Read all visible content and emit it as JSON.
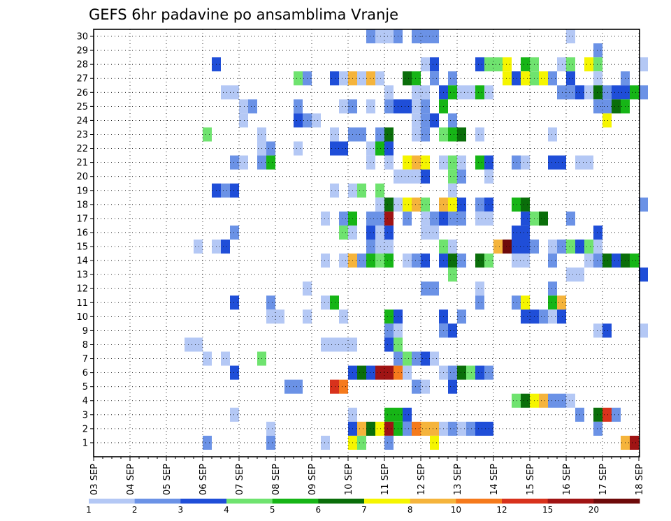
{
  "chart_data": {
    "type": "heatmap",
    "title": "GEFS 6hr padavine po ansamblima Vranje",
    "x_tick_labels": [
      "03 SEP",
      "04 SEP",
      "05 SEP",
      "06 SEP",
      "07 SEP",
      "08 SEP",
      "09 SEP",
      "10 SEP",
      "11 SEP",
      "12 SEP",
      "13 SEP",
      "14 SEP",
      "15 SEP",
      "16 SEP",
      "17 SEP",
      "18 SEP"
    ],
    "x_days_start": 3,
    "x_steps_per_day": 4,
    "y_members": [
      1,
      30
    ],
    "y_tick_labels": [
      "1",
      "2",
      "3",
      "4",
      "5",
      "6",
      "7",
      "8",
      "9",
      "10",
      "11",
      "12",
      "13",
      "14",
      "15",
      "16",
      "17",
      "18",
      "19",
      "20",
      "21",
      "22",
      "23",
      "24",
      "25",
      "26",
      "27",
      "28",
      "29",
      "30"
    ],
    "colorbar": {
      "tick_labels": [
        "1",
        "2",
        "3",
        "4",
        "5",
        "6",
        "7",
        "8",
        "10",
        "12",
        "15",
        "20"
      ],
      "colors": [
        "#b4c8f5",
        "#6b92e6",
        "#1f4ed8",
        "#6fe36f",
        "#16b516",
        "#0a6e0a",
        "#f5f500",
        "#f5b43c",
        "#f57a1c",
        "#d8321c",
        "#a01414",
        "#6e0a0a"
      ]
    },
    "grid": true,
    "cells": [
      [
        30,
        30,
        2
      ],
      [
        30,
        31,
        1
      ],
      [
        30,
        32,
        1
      ],
      [
        30,
        33,
        2
      ],
      [
        30,
        35,
        2
      ],
      [
        30,
        36,
        2
      ],
      [
        30,
        37,
        2
      ],
      [
        30,
        52,
        1
      ],
      [
        29,
        55,
        2
      ],
      [
        28,
        13,
        3
      ],
      [
        28,
        36,
        1
      ],
      [
        28,
        37,
        3
      ],
      [
        28,
        42,
        3
      ],
      [
        28,
        43,
        4
      ],
      [
        28,
        44,
        4
      ],
      [
        28,
        45,
        7
      ],
      [
        28,
        47,
        5
      ],
      [
        28,
        48,
        4
      ],
      [
        28,
        51,
        1
      ],
      [
        28,
        52,
        4
      ],
      [
        28,
        54,
        7
      ],
      [
        28,
        55,
        4
      ],
      [
        28,
        60,
        1
      ],
      [
        27,
        22,
        4
      ],
      [
        27,
        23,
        2
      ],
      [
        27,
        26,
        3
      ],
      [
        27,
        27,
        1
      ],
      [
        27,
        28,
        8
      ],
      [
        27,
        29,
        1
      ],
      [
        27,
        30,
        8
      ],
      [
        27,
        31,
        1
      ],
      [
        27,
        34,
        6
      ],
      [
        27,
        35,
        5
      ],
      [
        27,
        37,
        2
      ],
      [
        27,
        39,
        2
      ],
      [
        27,
        45,
        7
      ],
      [
        27,
        46,
        3
      ],
      [
        27,
        47,
        7
      ],
      [
        27,
        48,
        4
      ],
      [
        27,
        49,
        7
      ],
      [
        27,
        50,
        2
      ],
      [
        27,
        52,
        3
      ],
      [
        27,
        55,
        1
      ],
      [
        27,
        58,
        2
      ],
      [
        26,
        14,
        1
      ],
      [
        26,
        15,
        1
      ],
      [
        26,
        32,
        1
      ],
      [
        26,
        35,
        1
      ],
      [
        26,
        36,
        1
      ],
      [
        26,
        38,
        3
      ],
      [
        26,
        39,
        5
      ],
      [
        26,
        40,
        1
      ],
      [
        26,
        41,
        1
      ],
      [
        26,
        42,
        5
      ],
      [
        26,
        43,
        1
      ],
      [
        26,
        51,
        2
      ],
      [
        26,
        52,
        2
      ],
      [
        26,
        53,
        3
      ],
      [
        26,
        54,
        1
      ],
      [
        26,
        55,
        6
      ],
      [
        26,
        56,
        2
      ],
      [
        26,
        57,
        3
      ],
      [
        26,
        58,
        3
      ],
      [
        26,
        59,
        5
      ],
      [
        26,
        60,
        2
      ],
      [
        25,
        16,
        1
      ],
      [
        25,
        17,
        2
      ],
      [
        25,
        22,
        2
      ],
      [
        25,
        27,
        1
      ],
      [
        25,
        28,
        2
      ],
      [
        25,
        30,
        1
      ],
      [
        25,
        32,
        2
      ],
      [
        25,
        33,
        3
      ],
      [
        25,
        34,
        3
      ],
      [
        25,
        35,
        1
      ],
      [
        25,
        36,
        2
      ],
      [
        25,
        38,
        5
      ],
      [
        25,
        55,
        2
      ],
      [
        25,
        56,
        2
      ],
      [
        25,
        57,
        6
      ],
      [
        25,
        58,
        5
      ],
      [
        24,
        16,
        1
      ],
      [
        24,
        22,
        3
      ],
      [
        24,
        23,
        2
      ],
      [
        24,
        24,
        1
      ],
      [
        24,
        35,
        1
      ],
      [
        24,
        36,
        2
      ],
      [
        24,
        37,
        3
      ],
      [
        24,
        39,
        2
      ],
      [
        24,
        56,
        7
      ],
      [
        23,
        12,
        4
      ],
      [
        23,
        18,
        1
      ],
      [
        23,
        26,
        1
      ],
      [
        23,
        28,
        2
      ],
      [
        23,
        29,
        2
      ],
      [
        23,
        31,
        2
      ],
      [
        23,
        32,
        6
      ],
      [
        23,
        35,
        1
      ],
      [
        23,
        36,
        2
      ],
      [
        23,
        38,
        4
      ],
      [
        23,
        39,
        5
      ],
      [
        23,
        40,
        6
      ],
      [
        23,
        42,
        1
      ],
      [
        23,
        50,
        1
      ],
      [
        22,
        18,
        1
      ],
      [
        22,
        19,
        2
      ],
      [
        22,
        22,
        1
      ],
      [
        22,
        26,
        3
      ],
      [
        22,
        27,
        3
      ],
      [
        22,
        30,
        1
      ],
      [
        22,
        31,
        5
      ],
      [
        22,
        32,
        3
      ],
      [
        21,
        15,
        2
      ],
      [
        21,
        16,
        1
      ],
      [
        21,
        18,
        2
      ],
      [
        21,
        19,
        5
      ],
      [
        21,
        30,
        1
      ],
      [
        21,
        32,
        1
      ],
      [
        21,
        34,
        7
      ],
      [
        21,
        35,
        8
      ],
      [
        21,
        36,
        7
      ],
      [
        21,
        38,
        1
      ],
      [
        21,
        39,
        4
      ],
      [
        21,
        40,
        1
      ],
      [
        21,
        42,
        5
      ],
      [
        21,
        43,
        3
      ],
      [
        21,
        46,
        2
      ],
      [
        21,
        47,
        1
      ],
      [
        21,
        50,
        3
      ],
      [
        21,
        51,
        3
      ],
      [
        21,
        53,
        1
      ],
      [
        21,
        54,
        1
      ],
      [
        20,
        33,
        1
      ],
      [
        20,
        34,
        1
      ],
      [
        20,
        35,
        1
      ],
      [
        20,
        36,
        3
      ],
      [
        20,
        39,
        4
      ],
      [
        20,
        40,
        2
      ],
      [
        20,
        43,
        1
      ],
      [
        19,
        13,
        3
      ],
      [
        19,
        14,
        2
      ],
      [
        19,
        15,
        3
      ],
      [
        19,
        26,
        1
      ],
      [
        19,
        28,
        1
      ],
      [
        19,
        29,
        4
      ],
      [
        19,
        31,
        4
      ],
      [
        19,
        39,
        1
      ],
      [
        18,
        31,
        1
      ],
      [
        18,
        32,
        6
      ],
      [
        18,
        33,
        1
      ],
      [
        18,
        34,
        7
      ],
      [
        18,
        35,
        8
      ],
      [
        18,
        36,
        4
      ],
      [
        18,
        38,
        8
      ],
      [
        18,
        39,
        7
      ],
      [
        18,
        40,
        3
      ],
      [
        18,
        42,
        2
      ],
      [
        18,
        43,
        3
      ],
      [
        18,
        46,
        5
      ],
      [
        18,
        47,
        6
      ],
      [
        18,
        60,
        2
      ],
      [
        17,
        25,
        1
      ],
      [
        17,
        27,
        2
      ],
      [
        17,
        28,
        5
      ],
      [
        17,
        30,
        2
      ],
      [
        17,
        31,
        2
      ],
      [
        17,
        32,
        11
      ],
      [
        17,
        34,
        2
      ],
      [
        17,
        36,
        1
      ],
      [
        17,
        37,
        2
      ],
      [
        17,
        38,
        3
      ],
      [
        17,
        39,
        2
      ],
      [
        17,
        40,
        2
      ],
      [
        17,
        42,
        1
      ],
      [
        17,
        43,
        1
      ],
      [
        17,
        47,
        3
      ],
      [
        17,
        48,
        4
      ],
      [
        17,
        49,
        6
      ],
      [
        17,
        52,
        2
      ],
      [
        16,
        15,
        2
      ],
      [
        16,
        27,
        4
      ],
      [
        16,
        28,
        1
      ],
      [
        16,
        30,
        3
      ],
      [
        16,
        31,
        1
      ],
      [
        16,
        32,
        3
      ],
      [
        16,
        36,
        1
      ],
      [
        16,
        37,
        1
      ],
      [
        16,
        46,
        3
      ],
      [
        16,
        47,
        3
      ],
      [
        16,
        55,
        3
      ],
      [
        15,
        11,
        1
      ],
      [
        15,
        13,
        1
      ],
      [
        15,
        14,
        3
      ],
      [
        15,
        30,
        2
      ],
      [
        15,
        31,
        1
      ],
      [
        15,
        32,
        1
      ],
      [
        15,
        38,
        4
      ],
      [
        15,
        39,
        1
      ],
      [
        15,
        44,
        8
      ],
      [
        15,
        45,
        12
      ],
      [
        15,
        46,
        3
      ],
      [
        15,
        47,
        3
      ],
      [
        15,
        48,
        2
      ],
      [
        15,
        50,
        1
      ],
      [
        15,
        51,
        2
      ],
      [
        15,
        52,
        4
      ],
      [
        15,
        53,
        3
      ],
      [
        15,
        54,
        4
      ],
      [
        15,
        55,
        1
      ],
      [
        14,
        25,
        1
      ],
      [
        14,
        27,
        1
      ],
      [
        14,
        28,
        8
      ],
      [
        14,
        29,
        2
      ],
      [
        14,
        30,
        5
      ],
      [
        14,
        31,
        4
      ],
      [
        14,
        32,
        5
      ],
      [
        14,
        34,
        1
      ],
      [
        14,
        35,
        2
      ],
      [
        14,
        36,
        3
      ],
      [
        14,
        38,
        3
      ],
      [
        14,
        39,
        6
      ],
      [
        14,
        40,
        2
      ],
      [
        14,
        42,
        6
      ],
      [
        14,
        43,
        4
      ],
      [
        14,
        46,
        1
      ],
      [
        14,
        47,
        1
      ],
      [
        14,
        50,
        2
      ],
      [
        14,
        54,
        1
      ],
      [
        14,
        55,
        2
      ],
      [
        14,
        56,
        6
      ],
      [
        14,
        57,
        3
      ],
      [
        14,
        58,
        6
      ],
      [
        14,
        59,
        5
      ],
      [
        13,
        39,
        4
      ],
      [
        13,
        52,
        1
      ],
      [
        13,
        53,
        1
      ],
      [
        13,
        60,
        3
      ],
      [
        12,
        23,
        1
      ],
      [
        12,
        36,
        2
      ],
      [
        12,
        37,
        2
      ],
      [
        12,
        42,
        1
      ],
      [
        12,
        50,
        2
      ],
      [
        11,
        15,
        3
      ],
      [
        11,
        19,
        2
      ],
      [
        11,
        25,
        1
      ],
      [
        11,
        26,
        5
      ],
      [
        11,
        42,
        2
      ],
      [
        11,
        46,
        2
      ],
      [
        11,
        47,
        7
      ],
      [
        11,
        50,
        5
      ],
      [
        11,
        51,
        8
      ],
      [
        10,
        19,
        1
      ],
      [
        10,
        20,
        1
      ],
      [
        10,
        23,
        1
      ],
      [
        10,
        27,
        1
      ],
      [
        10,
        32,
        5
      ],
      [
        10,
        33,
        3
      ],
      [
        10,
        38,
        3
      ],
      [
        10,
        40,
        2
      ],
      [
        10,
        47,
        3
      ],
      [
        10,
        48,
        3
      ],
      [
        10,
        49,
        2
      ],
      [
        10,
        50,
        1
      ],
      [
        10,
        51,
        3
      ],
      [
        9,
        32,
        2
      ],
      [
        9,
        33,
        1
      ],
      [
        9,
        38,
        2
      ],
      [
        9,
        39,
        3
      ],
      [
        9,
        55,
        1
      ],
      [
        9,
        56,
        3
      ],
      [
        9,
        60,
        1
      ],
      [
        8,
        10,
        1
      ],
      [
        8,
        11,
        1
      ],
      [
        8,
        25,
        1
      ],
      [
        8,
        26,
        1
      ],
      [
        8,
        27,
        1
      ],
      [
        8,
        28,
        1
      ],
      [
        8,
        32,
        3
      ],
      [
        8,
        33,
        4
      ],
      [
        7,
        12,
        1
      ],
      [
        7,
        14,
        1
      ],
      [
        7,
        18,
        4
      ],
      [
        7,
        33,
        2
      ],
      [
        7,
        34,
        4
      ],
      [
        7,
        35,
        2
      ],
      [
        7,
        36,
        3
      ],
      [
        7,
        37,
        1
      ],
      [
        6,
        15,
        3
      ],
      [
        6,
        28,
        3
      ],
      [
        6,
        29,
        6
      ],
      [
        6,
        30,
        3
      ],
      [
        6,
        31,
        11
      ],
      [
        6,
        32,
        11
      ],
      [
        6,
        33,
        9
      ],
      [
        6,
        34,
        1
      ],
      [
        6,
        38,
        1
      ],
      [
        6,
        39,
        2
      ],
      [
        6,
        40,
        6
      ],
      [
        6,
        41,
        4
      ],
      [
        6,
        42,
        3
      ],
      [
        6,
        43,
        2
      ],
      [
        5,
        21,
        2
      ],
      [
        5,
        22,
        2
      ],
      [
        5,
        26,
        10
      ],
      [
        5,
        27,
        9
      ],
      [
        5,
        35,
        2
      ],
      [
        5,
        36,
        1
      ],
      [
        5,
        39,
        3
      ],
      [
        4,
        46,
        4
      ],
      [
        4,
        47,
        6
      ],
      [
        4,
        48,
        7
      ],
      [
        4,
        49,
        8
      ],
      [
        4,
        50,
        2
      ],
      [
        4,
        51,
        2
      ],
      [
        4,
        52,
        1
      ],
      [
        3,
        15,
        1
      ],
      [
        3,
        28,
        1
      ],
      [
        3,
        32,
        5
      ],
      [
        3,
        33,
        5
      ],
      [
        3,
        34,
        3
      ],
      [
        3,
        53,
        2
      ],
      [
        3,
        55,
        6
      ],
      [
        3,
        56,
        10
      ],
      [
        3,
        57,
        2
      ],
      [
        2,
        19,
        1
      ],
      [
        2,
        28,
        3
      ],
      [
        2,
        29,
        8
      ],
      [
        2,
        30,
        6
      ],
      [
        2,
        31,
        7
      ],
      [
        2,
        32,
        11
      ],
      [
        2,
        33,
        5
      ],
      [
        2,
        34,
        2
      ],
      [
        2,
        35,
        9
      ],
      [
        2,
        36,
        8
      ],
      [
        2,
        37,
        8
      ],
      [
        2,
        38,
        1
      ],
      [
        2,
        39,
        2
      ],
      [
        2,
        40,
        1
      ],
      [
        2,
        41,
        2
      ],
      [
        2,
        42,
        3
      ],
      [
        2,
        43,
        3
      ],
      [
        2,
        55,
        2
      ],
      [
        1,
        12,
        2
      ],
      [
        1,
        19,
        2
      ],
      [
        1,
        25,
        1
      ],
      [
        1,
        28,
        7
      ],
      [
        1,
        29,
        4
      ],
      [
        1,
        32,
        2
      ],
      [
        1,
        37,
        7
      ],
      [
        1,
        58,
        8
      ],
      [
        1,
        59,
        11
      ]
    ]
  }
}
